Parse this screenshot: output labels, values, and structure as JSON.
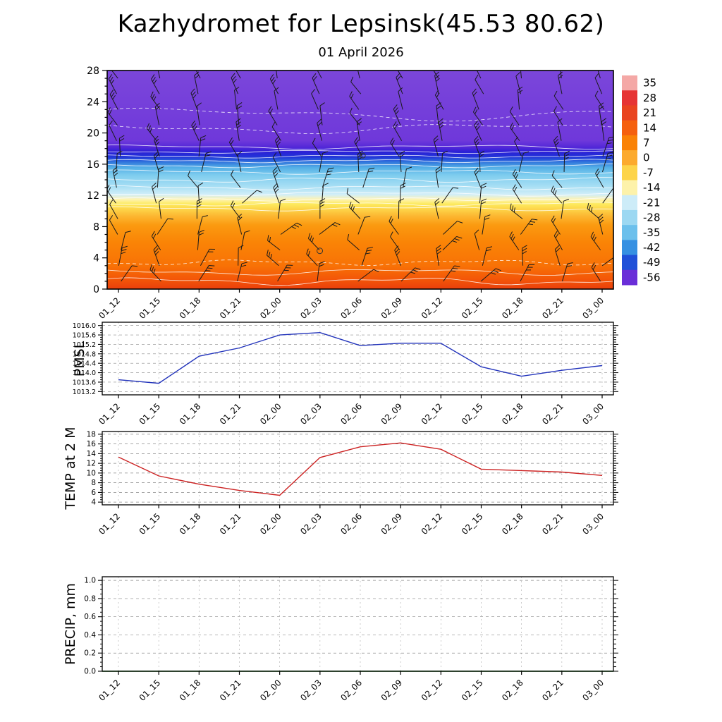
{
  "header": {
    "title": "Kazhydromet for Lepsinsk(45.53 80.62)",
    "subtitle": "01 April 2026"
  },
  "chart_data": [
    {
      "id": "cross_section",
      "type": "heatmap",
      "title": "01 April 2026",
      "x_categories": [
        "01_12",
        "01_15",
        "01_18",
        "01_21",
        "02_00",
        "02_03",
        "02_06",
        "02_09",
        "02_12",
        "02_15",
        "02_18",
        "02_21",
        "03_00"
      ],
      "ylim": [
        0,
        28
      ],
      "y_ticks": [
        0,
        4,
        8,
        12,
        16,
        20,
        24,
        28
      ],
      "colorbar": {
        "ticks": [
          35,
          28,
          21,
          14,
          7,
          0,
          -7,
          -14,
          -21,
          -28,
          -35,
          -42,
          -49,
          -56
        ],
        "colors": [
          "#f4a8a6",
          "#e63434",
          "#e94420",
          "#f5600e",
          "#fa8206",
          "#fcaa2e",
          "#fdd44a",
          "#fdf2aa",
          "#cdecf8",
          "#9cd8f2",
          "#6cc0ec",
          "#3690e2",
          "#2050d8",
          "#6a2ed8"
        ]
      },
      "gradient_stops": [
        [
          0,
          "#ea3f0c"
        ],
        [
          1.2,
          "#f35508"
        ],
        [
          3,
          "#f87206"
        ],
        [
          6,
          "#fa8406"
        ],
        [
          8.2,
          "#fb9a10"
        ],
        [
          9.4,
          "#fcb832"
        ],
        [
          10.2,
          "#fdd348"
        ],
        [
          10.9,
          "#fdea5e"
        ],
        [
          11.5,
          "#fef3b2"
        ],
        [
          12.1,
          "#d2eef8"
        ],
        [
          13.2,
          "#a6def4"
        ],
        [
          14.6,
          "#7eccee"
        ],
        [
          15.6,
          "#52aee6"
        ],
        [
          16.3,
          "#2f72dc"
        ],
        [
          16.9,
          "#2136d8"
        ],
        [
          17.6,
          "#2c20d6"
        ],
        [
          18.1,
          "#5026d8"
        ],
        [
          19,
          "#6f38da"
        ],
        [
          28,
          "#7b46da"
        ]
      ]
    },
    {
      "id": "pmsl",
      "type": "line",
      "ylabel": "PMSL",
      "line_color": "#2233bb",
      "x_categories": [
        "01_12",
        "01_15",
        "01_18",
        "01_21",
        "02_00",
        "02_03",
        "02_06",
        "02_09",
        "02_12",
        "02_15",
        "02_18",
        "02_21",
        "03_00"
      ],
      "ylim": [
        1013.2,
        1016.0
      ],
      "y_ticks": [
        1013.2,
        1013.6,
        1014.0,
        1014.4,
        1014.8,
        1015.2,
        1015.6,
        1016.0
      ],
      "y_tick_labels": [
        "1013.2",
        "1013.6",
        "1014.0",
        "1014.4",
        "1014.8",
        "1015.2",
        "1015.6",
        "1016.0"
      ],
      "values": [
        1013.7,
        1013.55,
        1014.7,
        1015.05,
        1015.6,
        1015.7,
        1015.15,
        1015.25,
        1015.25,
        1014.25,
        1013.85,
        1014.1,
        1014.3
      ]
    },
    {
      "id": "temp2m",
      "type": "line",
      "ylabel": "TEMP at 2 M",
      "line_color": "#cc2222",
      "x_categories": [
        "01_12",
        "01_15",
        "01_18",
        "01_21",
        "02_00",
        "02_03",
        "02_06",
        "02_09",
        "02_12",
        "02_15",
        "02_18",
        "02_21",
        "03_00"
      ],
      "ylim": [
        4,
        18
      ],
      "y_ticks": [
        4,
        6,
        8,
        10,
        12,
        14,
        16,
        18
      ],
      "y_tick_labels": [
        "4",
        "6",
        "8",
        "10",
        "12",
        "14",
        "16",
        "18"
      ],
      "values": [
        13.3,
        9.4,
        7.7,
        6.4,
        5.4,
        13.2,
        15.4,
        16.2,
        14.9,
        10.8,
        10.5,
        10.2,
        9.5
      ]
    },
    {
      "id": "precip",
      "type": "line",
      "ylabel": "PRECIP, mm",
      "line_color": "#0a7a0a",
      "x_categories": [
        "01_12",
        "01_15",
        "01_18",
        "01_21",
        "02_00",
        "02_03",
        "02_06",
        "02_09",
        "02_12",
        "02_15",
        "02_18",
        "02_21",
        "03_00"
      ],
      "ylim": [
        0.0,
        1.0
      ],
      "y_ticks": [
        0.0,
        0.2,
        0.4,
        0.6,
        0.8,
        1.0
      ],
      "y_tick_labels": [
        "0.0",
        "0.2",
        "0.4",
        "0.6",
        "0.8",
        "1.0"
      ],
      "values": [
        0,
        0,
        0,
        0,
        0,
        0,
        0,
        0,
        0,
        0,
        0,
        0,
        0
      ]
    }
  ]
}
